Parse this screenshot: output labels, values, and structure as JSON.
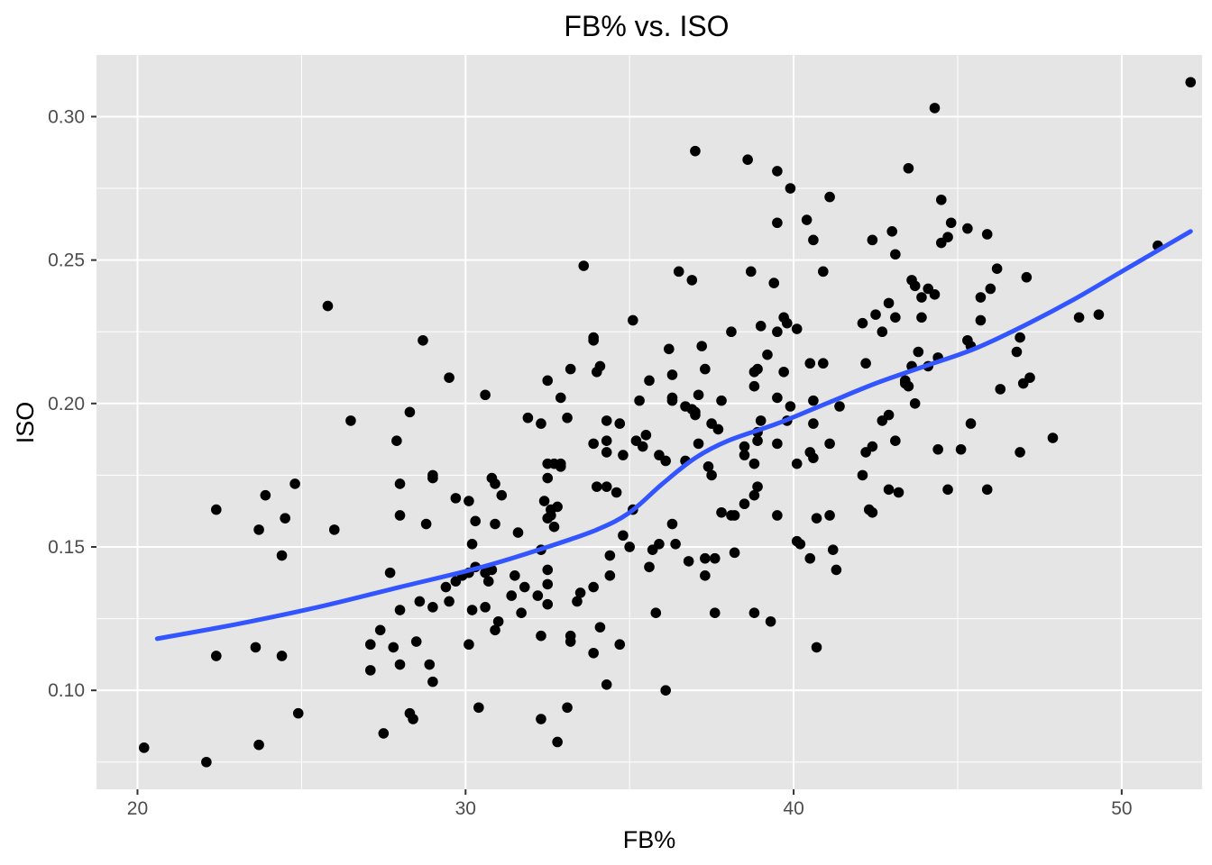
{
  "chart_data": {
    "type": "scatter",
    "title": "FB% vs. ISO",
    "xlabel": "FB%",
    "ylabel": "ISO",
    "xlim": [
      18.75,
      52.45
    ],
    "ylim": [
      0.0655,
      0.3215
    ],
    "x_ticks": [
      "20",
      "30",
      "40",
      "50"
    ],
    "y_ticks": [
      "0.10",
      "0.15",
      "0.20",
      "0.25",
      "0.30"
    ],
    "grid": true,
    "legend": "none",
    "colors": {
      "panel": "#e5e5e5",
      "grid": "#ffffff",
      "points": "#000000",
      "smooth": "#3355ff",
      "tick_text": "#4d4d4d"
    },
    "series": [
      {
        "kind": "points",
        "points": [
          [
            20.2,
            0.08
          ],
          [
            22.1,
            0.075
          ],
          [
            22.4,
            0.163
          ],
          [
            22.4,
            0.112
          ],
          [
            23.6,
            0.115
          ],
          [
            23.7,
            0.156
          ],
          [
            23.7,
            0.081
          ],
          [
            23.9,
            0.168
          ],
          [
            24.4,
            0.147
          ],
          [
            24.4,
            0.112
          ],
          [
            24.5,
            0.16
          ],
          [
            24.8,
            0.172
          ],
          [
            24.9,
            0.092
          ],
          [
            25.8,
            0.234
          ],
          [
            26.0,
            0.156
          ],
          [
            26.5,
            0.194
          ],
          [
            27.1,
            0.116
          ],
          [
            27.1,
            0.107
          ],
          [
            27.4,
            0.121
          ],
          [
            27.5,
            0.085
          ],
          [
            27.7,
            0.141
          ],
          [
            27.8,
            0.115
          ],
          [
            27.9,
            0.187
          ],
          [
            28.0,
            0.172
          ],
          [
            28.0,
            0.161
          ],
          [
            28.0,
            0.128
          ],
          [
            28.0,
            0.109
          ],
          [
            28.3,
            0.197
          ],
          [
            28.3,
            0.092
          ],
          [
            28.4,
            0.09
          ],
          [
            28.5,
            0.117
          ],
          [
            28.6,
            0.131
          ],
          [
            28.7,
            0.222
          ],
          [
            28.8,
            0.158
          ],
          [
            28.9,
            0.109
          ],
          [
            29.0,
            0.175
          ],
          [
            29.0,
            0.174
          ],
          [
            29.0,
            0.129
          ],
          [
            29.0,
            0.103
          ],
          [
            29.4,
            0.136
          ],
          [
            29.5,
            0.209
          ],
          [
            29.5,
            0.131
          ],
          [
            29.7,
            0.167
          ],
          [
            29.7,
            0.138
          ],
          [
            29.9,
            0.14
          ],
          [
            30.1,
            0.166
          ],
          [
            30.1,
            0.141
          ],
          [
            30.1,
            0.116
          ],
          [
            30.2,
            0.151
          ],
          [
            30.2,
            0.128
          ],
          [
            30.3,
            0.159
          ],
          [
            30.3,
            0.143
          ],
          [
            30.4,
            0.094
          ],
          [
            30.6,
            0.203
          ],
          [
            30.6,
            0.141
          ],
          [
            30.6,
            0.129
          ],
          [
            30.7,
            0.138
          ],
          [
            30.8,
            0.174
          ],
          [
            30.8,
            0.142
          ],
          [
            30.9,
            0.172
          ],
          [
            30.9,
            0.158
          ],
          [
            30.9,
            0.121
          ],
          [
            31.0,
            0.124
          ],
          [
            31.1,
            0.168
          ],
          [
            31.4,
            0.133
          ],
          [
            31.5,
            0.14
          ],
          [
            31.6,
            0.155
          ],
          [
            31.7,
            0.127
          ],
          [
            31.8,
            0.136
          ],
          [
            31.9,
            0.195
          ],
          [
            32.2,
            0.133
          ],
          [
            32.3,
            0.193
          ],
          [
            32.3,
            0.149
          ],
          [
            32.3,
            0.119
          ],
          [
            32.3,
            0.09
          ],
          [
            32.4,
            0.166
          ],
          [
            32.5,
            0.208
          ],
          [
            32.5,
            0.179
          ],
          [
            32.5,
            0.174
          ],
          [
            32.5,
            0.16
          ],
          [
            32.5,
            0.142
          ],
          [
            32.5,
            0.137
          ],
          [
            32.5,
            0.13
          ],
          [
            32.6,
            0.163
          ],
          [
            32.6,
            0.161
          ],
          [
            32.7,
            0.179
          ],
          [
            32.7,
            0.157
          ],
          [
            32.8,
            0.164
          ],
          [
            32.8,
            0.082
          ],
          [
            32.9,
            0.179
          ],
          [
            32.9,
            0.178
          ],
          [
            32.9,
            0.202
          ],
          [
            33.1,
            0.195
          ],
          [
            33.1,
            0.094
          ],
          [
            33.2,
            0.212
          ],
          [
            33.2,
            0.119
          ],
          [
            33.2,
            0.117
          ],
          [
            33.4,
            0.131
          ],
          [
            33.5,
            0.134
          ],
          [
            33.6,
            0.248
          ],
          [
            33.9,
            0.223
          ],
          [
            33.9,
            0.222
          ],
          [
            33.9,
            0.186
          ],
          [
            33.9,
            0.136
          ],
          [
            33.9,
            0.113
          ],
          [
            34.0,
            0.211
          ],
          [
            34.0,
            0.171
          ],
          [
            34.1,
            0.213
          ],
          [
            34.1,
            0.122
          ],
          [
            34.3,
            0.171
          ],
          [
            34.3,
            0.194
          ],
          [
            34.3,
            0.187
          ],
          [
            34.3,
            0.183
          ],
          [
            34.3,
            0.102
          ],
          [
            34.4,
            0.147
          ],
          [
            34.4,
            0.14
          ],
          [
            34.6,
            0.169
          ],
          [
            34.7,
            0.193
          ],
          [
            34.7,
            0.116
          ],
          [
            34.8,
            0.182
          ],
          [
            34.8,
            0.154
          ],
          [
            35.0,
            0.15
          ],
          [
            35.1,
            0.229
          ],
          [
            35.1,
            0.163
          ],
          [
            35.2,
            0.187
          ],
          [
            35.3,
            0.201
          ],
          [
            35.4,
            0.185
          ],
          [
            35.5,
            0.189
          ],
          [
            35.6,
            0.208
          ],
          [
            35.6,
            0.143
          ],
          [
            35.7,
            0.149
          ],
          [
            35.8,
            0.127
          ],
          [
            35.9,
            0.182
          ],
          [
            35.9,
            0.151
          ],
          [
            36.1,
            0.18
          ],
          [
            36.1,
            0.1
          ],
          [
            36.2,
            0.219
          ],
          [
            36.3,
            0.21
          ],
          [
            36.3,
            0.202
          ],
          [
            36.3,
            0.201
          ],
          [
            36.3,
            0.158
          ],
          [
            36.4,
            0.151
          ],
          [
            36.5,
            0.246
          ],
          [
            36.7,
            0.199
          ],
          [
            36.7,
            0.18
          ],
          [
            36.8,
            0.145
          ],
          [
            36.9,
            0.243
          ],
          [
            36.9,
            0.198
          ],
          [
            37.0,
            0.288
          ],
          [
            37.0,
            0.197
          ],
          [
            37.0,
            0.196
          ],
          [
            37.1,
            0.203
          ],
          [
            37.1,
            0.186
          ],
          [
            37.2,
            0.22
          ],
          [
            37.3,
            0.212
          ],
          [
            37.3,
            0.146
          ],
          [
            37.3,
            0.14
          ],
          [
            37.4,
            0.178
          ],
          [
            37.5,
            0.193
          ],
          [
            37.5,
            0.175
          ],
          [
            37.6,
            0.146
          ],
          [
            37.6,
            0.127
          ],
          [
            37.7,
            0.191
          ],
          [
            37.8,
            0.201
          ],
          [
            37.8,
            0.162
          ],
          [
            38.1,
            0.161
          ],
          [
            38.1,
            0.225
          ],
          [
            38.2,
            0.161
          ],
          [
            38.2,
            0.148
          ],
          [
            38.5,
            0.185
          ],
          [
            38.5,
            0.182
          ],
          [
            38.5,
            0.165
          ],
          [
            38.6,
            0.285
          ],
          [
            38.7,
            0.246
          ],
          [
            38.8,
            0.211
          ],
          [
            38.8,
            0.206
          ],
          [
            38.8,
            0.179
          ],
          [
            38.8,
            0.168
          ],
          [
            38.8,
            0.127
          ],
          [
            38.9,
            0.212
          ],
          [
            38.9,
            0.19
          ],
          [
            38.9,
            0.187
          ],
          [
            38.9,
            0.171
          ],
          [
            39.0,
            0.227
          ],
          [
            39.0,
            0.194
          ],
          [
            39.2,
            0.217
          ],
          [
            39.3,
            0.124
          ],
          [
            39.4,
            0.242
          ],
          [
            39.5,
            0.281
          ],
          [
            39.5,
            0.263
          ],
          [
            39.5,
            0.225
          ],
          [
            39.5,
            0.202
          ],
          [
            39.5,
            0.186
          ],
          [
            39.5,
            0.161
          ],
          [
            39.7,
            0.23
          ],
          [
            39.7,
            0.211
          ],
          [
            39.8,
            0.228
          ],
          [
            39.8,
            0.194
          ],
          [
            39.9,
            0.275
          ],
          [
            39.9,
            0.199
          ],
          [
            40.1,
            0.226
          ],
          [
            40.1,
            0.179
          ],
          [
            40.1,
            0.152
          ],
          [
            40.2,
            0.151
          ],
          [
            40.4,
            0.264
          ],
          [
            40.5,
            0.214
          ],
          [
            40.5,
            0.183
          ],
          [
            40.5,
            0.146
          ],
          [
            40.6,
            0.257
          ],
          [
            40.6,
            0.201
          ],
          [
            40.6,
            0.193
          ],
          [
            40.6,
            0.181
          ],
          [
            40.7,
            0.16
          ],
          [
            40.7,
            0.115
          ],
          [
            40.9,
            0.246
          ],
          [
            40.9,
            0.214
          ],
          [
            41.1,
            0.272
          ],
          [
            41.1,
            0.186
          ],
          [
            41.1,
            0.161
          ],
          [
            41.2,
            0.149
          ],
          [
            41.3,
            0.142
          ],
          [
            41.4,
            0.199
          ],
          [
            42.1,
            0.228
          ],
          [
            42.1,
            0.175
          ],
          [
            42.2,
            0.214
          ],
          [
            42.2,
            0.183
          ],
          [
            42.3,
            0.163
          ],
          [
            42.4,
            0.257
          ],
          [
            42.4,
            0.185
          ],
          [
            42.4,
            0.162
          ],
          [
            42.5,
            0.231
          ],
          [
            42.7,
            0.225
          ],
          [
            42.7,
            0.194
          ],
          [
            42.9,
            0.235
          ],
          [
            42.9,
            0.196
          ],
          [
            42.9,
            0.17
          ],
          [
            43.0,
            0.26
          ],
          [
            43.1,
            0.252
          ],
          [
            43.1,
            0.23
          ],
          [
            43.1,
            0.187
          ],
          [
            43.2,
            0.169
          ],
          [
            43.4,
            0.208
          ],
          [
            43.4,
            0.207
          ],
          [
            43.5,
            0.206
          ],
          [
            43.5,
            0.282
          ],
          [
            43.6,
            0.243
          ],
          [
            43.6,
            0.213
          ],
          [
            43.7,
            0.241
          ],
          [
            43.7,
            0.2
          ],
          [
            43.8,
            0.218
          ],
          [
            43.9,
            0.237
          ],
          [
            43.9,
            0.23
          ],
          [
            44.1,
            0.24
          ],
          [
            44.1,
            0.213
          ],
          [
            44.3,
            0.303
          ],
          [
            44.3,
            0.238
          ],
          [
            44.4,
            0.216
          ],
          [
            44.4,
            0.184
          ],
          [
            44.5,
            0.271
          ],
          [
            44.5,
            0.256
          ],
          [
            44.7,
            0.258
          ],
          [
            44.7,
            0.17
          ],
          [
            44.8,
            0.263
          ],
          [
            45.1,
            0.184
          ],
          [
            45.3,
            0.261
          ],
          [
            45.3,
            0.222
          ],
          [
            45.4,
            0.22
          ],
          [
            45.4,
            0.193
          ],
          [
            45.7,
            0.237
          ],
          [
            45.7,
            0.229
          ],
          [
            45.9,
            0.259
          ],
          [
            45.9,
            0.17
          ],
          [
            46.0,
            0.24
          ],
          [
            46.2,
            0.247
          ],
          [
            46.3,
            0.205
          ],
          [
            46.8,
            0.218
          ],
          [
            46.9,
            0.223
          ],
          [
            46.9,
            0.183
          ],
          [
            47.0,
            0.207
          ],
          [
            47.1,
            0.244
          ],
          [
            47.2,
            0.209
          ],
          [
            47.9,
            0.188
          ],
          [
            48.7,
            0.23
          ],
          [
            49.3,
            0.231
          ],
          [
            51.1,
            0.255
          ],
          [
            52.1,
            0.312
          ]
        ]
      },
      {
        "kind": "smooth",
        "points": [
          [
            20.6,
            0.118
          ],
          [
            23.0,
            0.123
          ],
          [
            25.5,
            0.129
          ],
          [
            28.0,
            0.136
          ],
          [
            30.5,
            0.143
          ],
          [
            32.5,
            0.15
          ],
          [
            34.0,
            0.156
          ],
          [
            35.0,
            0.162
          ],
          [
            36.0,
            0.172
          ],
          [
            37.0,
            0.181
          ],
          [
            38.0,
            0.187
          ],
          [
            39.5,
            0.193
          ],
          [
            41.0,
            0.2
          ],
          [
            42.5,
            0.207
          ],
          [
            44.0,
            0.213
          ],
          [
            45.5,
            0.219
          ],
          [
            47.0,
            0.227
          ],
          [
            48.5,
            0.236
          ],
          [
            50.0,
            0.246
          ],
          [
            51.5,
            0.256
          ],
          [
            52.1,
            0.26
          ]
        ]
      }
    ]
  }
}
